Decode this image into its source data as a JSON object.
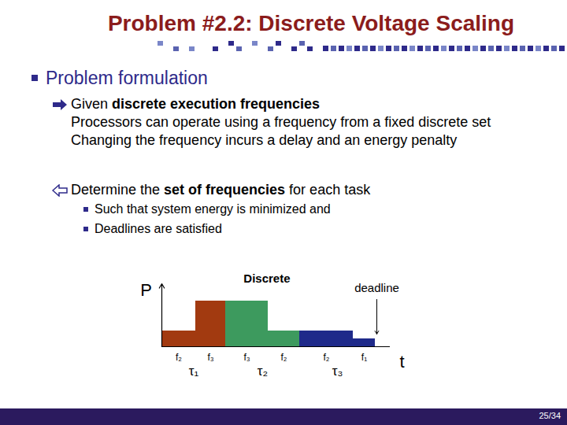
{
  "title": "Problem #2.2: Discrete Voltage Scaling",
  "page": "25/34",
  "sections": [
    {
      "heading": "Problem formulation",
      "items": [
        {
          "marker": "arrow-right",
          "lines": [
            [
              {
                "text": "Given "
              },
              {
                "text": "discrete execution frequencies",
                "bold": true
              }
            ],
            [
              {
                "text": "Processors can operate using a frequency from a fixed discrete set"
              }
            ],
            [
              {
                "text": "Changing the frequency incurs a delay and an energy penalty"
              }
            ]
          ]
        },
        {
          "marker": "arrow-left",
          "lines": [
            [
              {
                "text": "Determine the "
              },
              {
                "text": "set of frequencies",
                "bold": true
              },
              {
                "text": " for each task"
              }
            ]
          ],
          "subitems": [
            "Such that system energy is minimized and",
            "Deadlines are satisfied"
          ]
        }
      ]
    }
  ],
  "chart_data": {
    "type": "bar",
    "ylabel": "P",
    "xlabel": "t",
    "annotation": "Discrete",
    "deadline": {
      "label": "deadline",
      "value": 27.3
    },
    "xlim": [
      0,
      29
    ],
    "ylim": [
      0,
      4
    ],
    "xticks": [],
    "yticks": [],
    "tick_labels": false,
    "tasks": [
      {
        "name": "τ₁",
        "color": "#a23a10",
        "segments": [
          {
            "label": "f₂",
            "duration": 4.3,
            "power": 1
          },
          {
            "label": "f₃",
            "duration": 3.8,
            "power": 2.9
          }
        ]
      },
      {
        "name": "τ₂",
        "color": "#3d9a5e",
        "segments": [
          {
            "label": "f₃",
            "duration": 5.4,
            "power": 2.9
          },
          {
            "label": "f₂",
            "duration": 4.0,
            "power": 1
          }
        ]
      },
      {
        "name": "τ₃",
        "color": "#1f2a8a",
        "segments": [
          {
            "label": "f₂",
            "duration": 6.8,
            "power": 1
          },
          {
            "label": "f₁",
            "duration": 2.8,
            "power": 0.5
          }
        ]
      }
    ]
  }
}
